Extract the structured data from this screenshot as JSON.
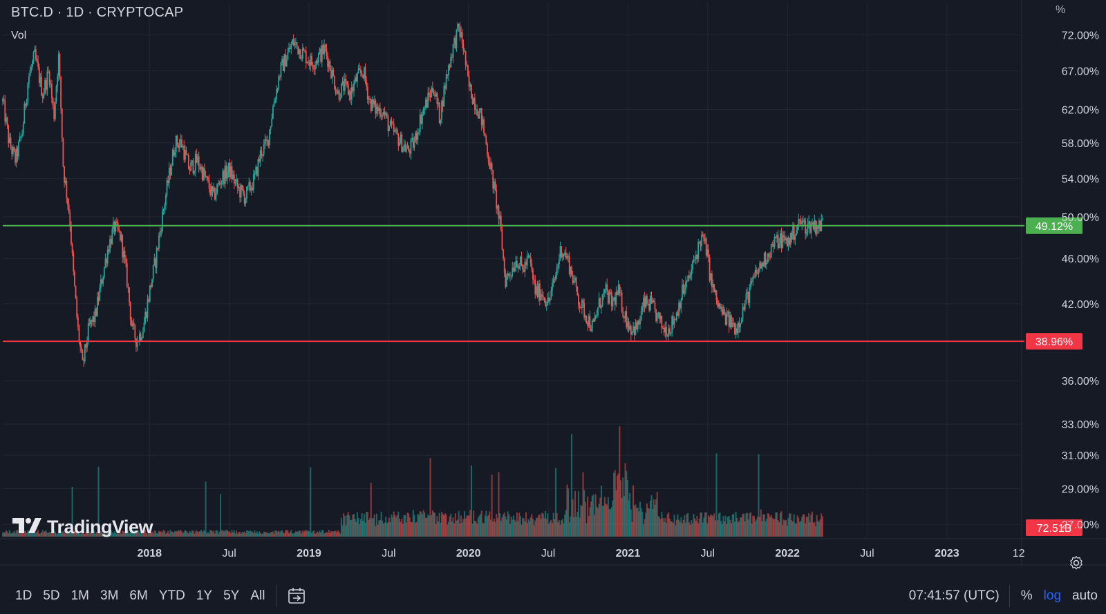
{
  "header": {
    "title": "BTC.D · 1D · CRYPTOCAP",
    "indicator": "Vol"
  },
  "logo_text": "TradingView",
  "price_scale_unit": "%",
  "colors": {
    "background": "#161a25",
    "grid": "#242733",
    "up": "#26a69a",
    "down": "#ef5350",
    "resistance": "#4caf50",
    "support": "#f23645",
    "axis_text": "#d1d4dc"
  },
  "bottom_bar": {
    "timeframes": [
      "1D",
      "5D",
      "1M",
      "3M",
      "6M",
      "YTD",
      "1Y",
      "5Y",
      "All"
    ],
    "clock": "07:41:57 (UTC)",
    "percent_label": "%",
    "log_label": "log",
    "auto_label": "auto"
  },
  "chart_data": {
    "type": "candlestick",
    "symbol": "BTC.D",
    "interval": "1D",
    "exchange": "CRYPTOCAP",
    "log_scale": true,
    "y_unit": "%",
    "y_ticks": [
      "72.00%",
      "67.00%",
      "62.00%",
      "58.00%",
      "54.00%",
      "50.00%",
      "46.00%",
      "42.00%",
      "36.00%",
      "33.00%",
      "31.00%",
      "29.00%",
      "27.00%"
    ],
    "y_tick_values": [
      72,
      67,
      62,
      58,
      54,
      50,
      46,
      42,
      36,
      33,
      31,
      29,
      27
    ],
    "x_ticks": [
      {
        "label": "2018",
        "t": 2018.0,
        "bold": true
      },
      {
        "label": "Jul",
        "t": 2018.5,
        "bold": false
      },
      {
        "label": "2019",
        "t": 2019.0,
        "bold": true
      },
      {
        "label": "Jul",
        "t": 2019.5,
        "bold": false
      },
      {
        "label": "2020",
        "t": 2020.0,
        "bold": true
      },
      {
        "label": "Jul",
        "t": 2020.5,
        "bold": false
      },
      {
        "label": "2021",
        "t": 2021.0,
        "bold": true
      },
      {
        "label": "Jul",
        "t": 2021.5,
        "bold": false
      },
      {
        "label": "2022",
        "t": 2022.0,
        "bold": true
      },
      {
        "label": "Jul",
        "t": 2022.5,
        "bold": false
      },
      {
        "label": "2023",
        "t": 2023.0,
        "bold": true
      },
      {
        "label": "12",
        "t": 2023.45,
        "bold": false
      }
    ],
    "x_range": [
      2017.08,
      2023.46
    ],
    "y_range": [
      26.3,
      76.8
    ],
    "series": [
      {
        "name": "BTC.D",
        "points": [
          [
            2017.08,
            63
          ],
          [
            2017.12,
            58
          ],
          [
            2017.16,
            56
          ],
          [
            2017.2,
            59
          ],
          [
            2017.24,
            66
          ],
          [
            2017.28,
            69
          ],
          [
            2017.33,
            64
          ],
          [
            2017.37,
            67
          ],
          [
            2017.4,
            61
          ],
          [
            2017.43,
            69
          ],
          [
            2017.46,
            55
          ],
          [
            2017.5,
            50
          ],
          [
            2017.52,
            45
          ],
          [
            2017.55,
            40
          ],
          [
            2017.58,
            37
          ],
          [
            2017.62,
            40
          ],
          [
            2017.66,
            41
          ],
          [
            2017.7,
            44
          ],
          [
            2017.74,
            47
          ],
          [
            2017.78,
            49
          ],
          [
            2017.82,
            48
          ],
          [
            2017.86,
            44
          ],
          [
            2017.89,
            40
          ],
          [
            2017.92,
            39
          ],
          [
            2017.96,
            40
          ],
          [
            2018.0,
            43
          ],
          [
            2018.04,
            46
          ],
          [
            2018.08,
            50
          ],
          [
            2018.12,
            54
          ],
          [
            2018.16,
            58
          ],
          [
            2018.2,
            58
          ],
          [
            2018.25,
            55
          ],
          [
            2018.3,
            56
          ],
          [
            2018.35,
            54
          ],
          [
            2018.4,
            52
          ],
          [
            2018.45,
            54
          ],
          [
            2018.5,
            55
          ],
          [
            2018.55,
            53
          ],
          [
            2018.6,
            52
          ],
          [
            2018.66,
            54
          ],
          [
            2018.7,
            57
          ],
          [
            2018.74,
            58
          ],
          [
            2018.78,
            63
          ],
          [
            2018.82,
            67
          ],
          [
            2018.86,
            69
          ],
          [
            2018.9,
            71
          ],
          [
            2018.94,
            70
          ],
          [
            2018.98,
            69
          ],
          [
            2019.02,
            68
          ],
          [
            2019.06,
            69
          ],
          [
            2019.1,
            70
          ],
          [
            2019.14,
            67
          ],
          [
            2019.18,
            64
          ],
          [
            2019.22,
            65
          ],
          [
            2019.26,
            64
          ],
          [
            2019.3,
            66
          ],
          [
            2019.34,
            67
          ],
          [
            2019.38,
            63
          ],
          [
            2019.42,
            62
          ],
          [
            2019.46,
            62
          ],
          [
            2019.5,
            60
          ],
          [
            2019.54,
            59
          ],
          [
            2019.58,
            58
          ],
          [
            2019.62,
            57
          ],
          [
            2019.66,
            58
          ],
          [
            2019.7,
            61
          ],
          [
            2019.74,
            63
          ],
          [
            2019.78,
            65
          ],
          [
            2019.82,
            61
          ],
          [
            2019.86,
            66
          ],
          [
            2019.9,
            70
          ],
          [
            2019.94,
            73
          ],
          [
            2019.97,
            70
          ],
          [
            2020.0,
            65
          ],
          [
            2020.04,
            63
          ],
          [
            2020.08,
            61
          ],
          [
            2020.12,
            57
          ],
          [
            2020.16,
            53
          ],
          [
            2020.2,
            49
          ],
          [
            2020.23,
            44
          ],
          [
            2020.27,
            45
          ],
          [
            2020.3,
            46
          ],
          [
            2020.34,
            45
          ],
          [
            2020.38,
            46
          ],
          [
            2020.42,
            43
          ],
          [
            2020.46,
            43
          ],
          [
            2020.5,
            42
          ],
          [
            2020.54,
            44
          ],
          [
            2020.58,
            47
          ],
          [
            2020.62,
            46
          ],
          [
            2020.66,
            44
          ],
          [
            2020.7,
            42
          ],
          [
            2020.74,
            41
          ],
          [
            2020.78,
            40
          ],
          [
            2020.82,
            42
          ],
          [
            2020.86,
            43
          ],
          [
            2020.9,
            42
          ],
          [
            2020.94,
            43
          ],
          [
            2020.98,
            41
          ],
          [
            2021.02,
            40
          ],
          [
            2021.06,
            40
          ],
          [
            2021.1,
            42
          ],
          [
            2021.14,
            42
          ],
          [
            2021.18,
            41
          ],
          [
            2021.22,
            40
          ],
          [
            2021.26,
            40
          ],
          [
            2021.3,
            41
          ],
          [
            2021.34,
            43
          ],
          [
            2021.38,
            44
          ],
          [
            2021.42,
            46
          ],
          [
            2021.46,
            48
          ],
          [
            2021.49,
            47
          ],
          [
            2021.52,
            44
          ],
          [
            2021.56,
            42
          ],
          [
            2021.6,
            41
          ],
          [
            2021.64,
            40.5
          ],
          [
            2021.68,
            40
          ],
          [
            2021.72,
            41.5
          ],
          [
            2021.76,
            43
          ],
          [
            2021.8,
            44.5
          ],
          [
            2021.84,
            45.5
          ],
          [
            2021.88,
            46.5
          ],
          [
            2021.92,
            47.5
          ],
          [
            2021.96,
            47.8
          ],
          [
            2022.0,
            47.5
          ],
          [
            2022.04,
            48.5
          ],
          [
            2022.08,
            49.5
          ],
          [
            2022.12,
            49.0
          ],
          [
            2022.16,
            49.3
          ],
          [
            2022.2,
            49.0
          ],
          [
            2022.22,
            49.5
          ]
        ]
      }
    ],
    "horizontal_lines": [
      {
        "name": "resistance",
        "value": 49.12,
        "label": "49.12%",
        "color": "#4caf50"
      },
      {
        "name": "support",
        "value": 38.96,
        "label": "38.96%",
        "color": "#f23645"
      }
    ],
    "volume_label": "72.51B",
    "volume_label_color": "#f23645",
    "grid": true
  }
}
